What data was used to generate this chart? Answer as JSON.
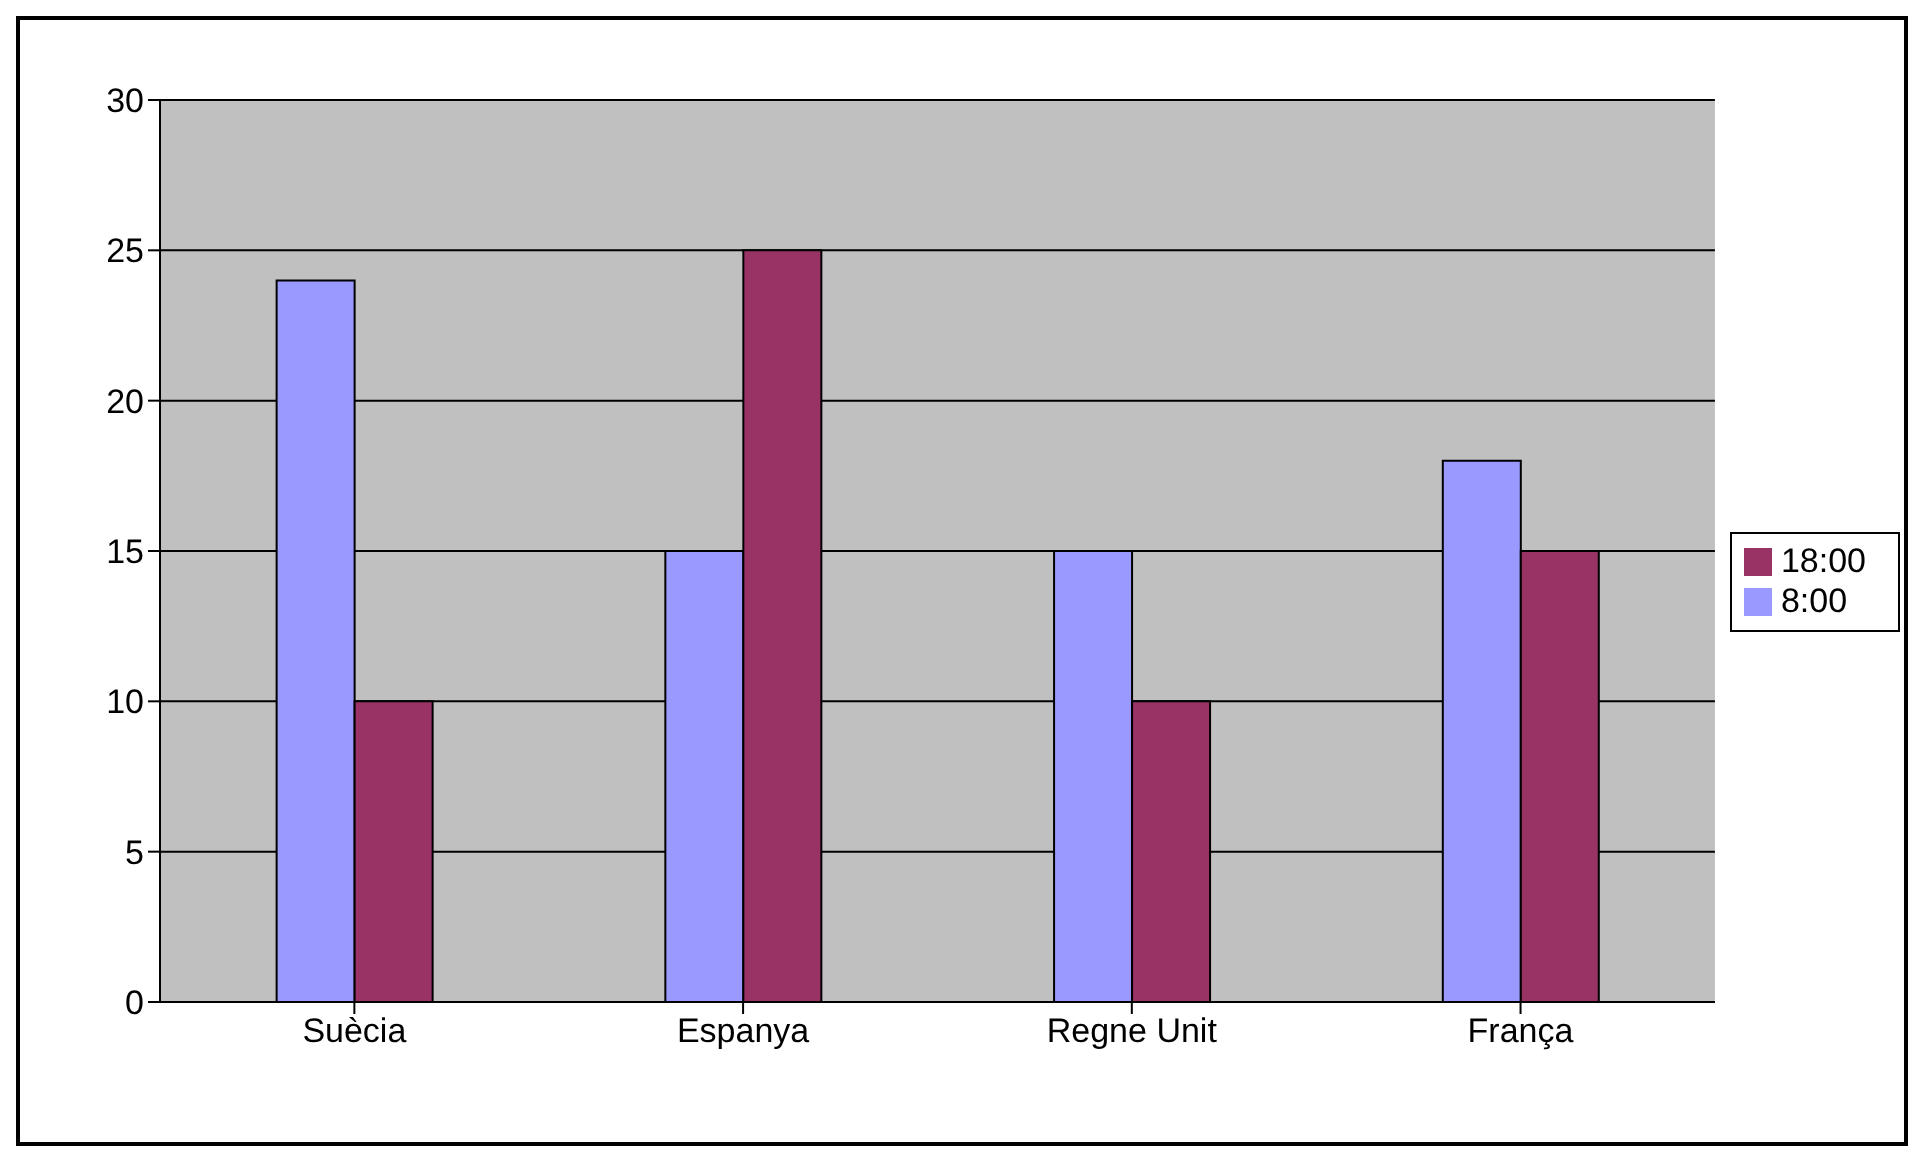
{
  "chart_data": {
    "type": "bar",
    "categories": [
      "Suècia",
      "Espanya",
      "Regne Unit",
      "França"
    ],
    "series": [
      {
        "name": "8:00",
        "color": "#9999ff",
        "values": [
          24,
          15,
          15,
          18
        ]
      },
      {
        "name": "18:00",
        "color": "#993366",
        "values": [
          10,
          25,
          10,
          15
        ]
      }
    ],
    "ylim": [
      0,
      30
    ],
    "yticks": [
      0,
      5,
      10,
      15,
      20,
      25,
      30
    ],
    "grid": "y",
    "legend": "right"
  }
}
